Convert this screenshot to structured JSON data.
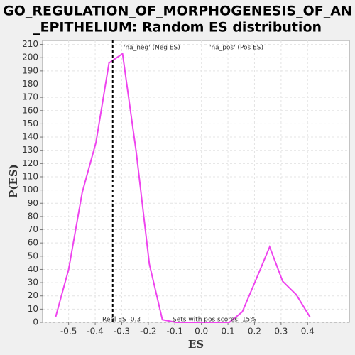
{
  "chart_data": {
    "type": "line",
    "title": [
      "GO_REGULATION_OF_MORPHOGENESIS_OF_AN",
      "_EPITHELIUM: Random ES distribution"
    ],
    "x_label": "ES",
    "y_label": "P(ES)",
    "x": [
      -0.549,
      -0.5,
      -0.449,
      -0.397,
      -0.348,
      -0.297,
      -0.245,
      -0.196,
      -0.147,
      -0.096,
      -0.047,
      0.004,
      0.054,
      0.105,
      0.154,
      0.205,
      0.257,
      0.306,
      0.357,
      0.409
    ],
    "series": [
      {
        "name": null,
        "color": "#ee44ee",
        "values": [
          4,
          40,
          98,
          136,
          196,
          203,
          128,
          44,
          2,
          0,
          0,
          0,
          0,
          0,
          8,
          32,
          57,
          31,
          21,
          4
        ]
      }
    ],
    "xlim": [
      -0.598,
      0.557
    ],
    "xticks": [
      -0.5,
      -0.4,
      -0.3,
      -0.2,
      -0.1,
      {
        "value": 0,
        "label": "0.0"
      },
      0.1,
      0.2,
      0.3,
      0.4
    ],
    "ylim": [
      0,
      213
    ],
    "yticks": [
      0,
      10,
      20,
      30,
      40,
      50,
      60,
      70,
      80,
      90,
      100,
      110,
      120,
      130,
      140,
      150,
      160,
      170,
      180,
      190,
      200,
      210
    ],
    "grid": true,
    "real_es": -0.334,
    "legend": [
      {
        "text": "'na_neg' (Neg ES)",
        "color": "#3333cc"
      },
      {
        "text": "'na_pos' (Pos ES)",
        "color": "#dd3333"
      }
    ],
    "annotations": [
      "Real ES -0.3",
      "Sets with pos scores: 15%"
    ]
  }
}
